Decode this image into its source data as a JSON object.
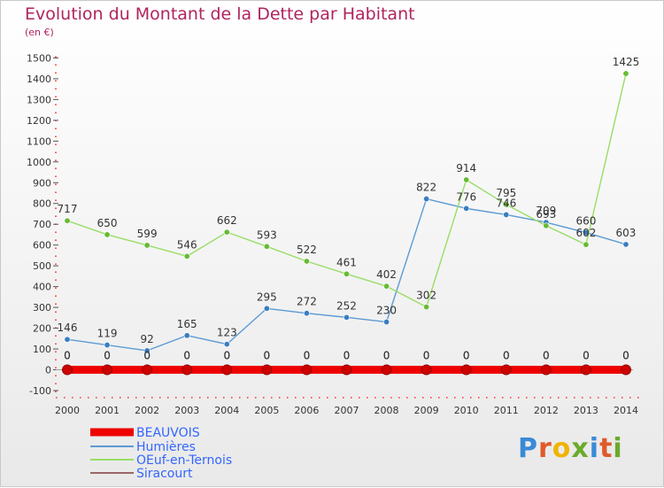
{
  "title": "Evolution du Montant de la Dette par Habitant",
  "subtitle": "(en €)",
  "logo": {
    "text": "Proxiti",
    "letters": [
      {
        "ch": "P",
        "color": "#3a8ad6"
      },
      {
        "ch": "r",
        "color": "#e05a2a"
      },
      {
        "ch": "o",
        "color": "#f0b400"
      },
      {
        "ch": "x",
        "color": "#6aaa2a"
      },
      {
        "ch": "i",
        "color": "#3a8ad6"
      },
      {
        "ch": "t",
        "color": "#e05a2a"
      },
      {
        "ch": "i",
        "color": "#6aaa2a"
      }
    ]
  },
  "chart_data": {
    "type": "line",
    "x": [
      2000,
      2001,
      2002,
      2003,
      2004,
      2005,
      2006,
      2007,
      2008,
      2009,
      2010,
      2011,
      2012,
      2013,
      2014
    ],
    "ylim": [
      -100,
      1500
    ],
    "yticks": [
      -100,
      0,
      100,
      200,
      300,
      400,
      500,
      600,
      700,
      800,
      900,
      1000,
      1100,
      1200,
      1300,
      1400,
      1500
    ],
    "grid": false,
    "legend_position": "bottom-left",
    "series": [
      {
        "name": "BEAUVOIS",
        "color": "#ee0000",
        "marker_color": "#cc0000",
        "values": [
          0,
          0,
          0,
          0,
          0,
          0,
          0,
          0,
          0,
          0,
          0,
          0,
          0,
          0,
          0
        ],
        "labels": [
          "0",
          "0",
          "0",
          "0",
          "0",
          "0",
          "0",
          "0",
          "0",
          "0",
          "0",
          "0",
          "0",
          "0",
          "0"
        ]
      },
      {
        "name": "Humières",
        "color": "#5b9bd5",
        "marker_color": "#3a7dc0",
        "values": [
          146,
          119,
          92,
          165,
          123,
          295,
          272,
          252,
          230,
          822,
          776,
          746,
          709,
          660,
          603
        ],
        "labels": [
          "146",
          "119",
          "92",
          "165",
          "123",
          "295",
          "272",
          "252",
          "230",
          "822",
          "776",
          "746",
          "709",
          "660",
          "603"
        ]
      },
      {
        "name": "OEuf-en-Ternois",
        "color": "#99dd66",
        "marker_color": "#66bb33",
        "values": [
          717,
          650,
          599,
          546,
          662,
          593,
          522,
          461,
          402,
          302,
          914,
          795,
          693,
          602,
          1425
        ],
        "labels": [
          "717",
          "650",
          "599",
          "546",
          "662",
          "593",
          "522",
          "461",
          "402",
          "302",
          "914",
          "795",
          "693",
          "602",
          "1425"
        ]
      },
      {
        "name": "Siracourt",
        "color": "#996666",
        "marker_color": "#663333",
        "values": [
          0,
          0,
          0,
          0,
          0,
          0,
          0,
          0,
          0,
          0,
          0,
          0,
          0,
          0,
          0
        ],
        "labels": [
          "0",
          "0",
          "0",
          "0",
          "0",
          "0",
          "0",
          "0",
          "0",
          "0",
          "0",
          "0",
          "0",
          "0",
          "0"
        ]
      }
    ]
  }
}
